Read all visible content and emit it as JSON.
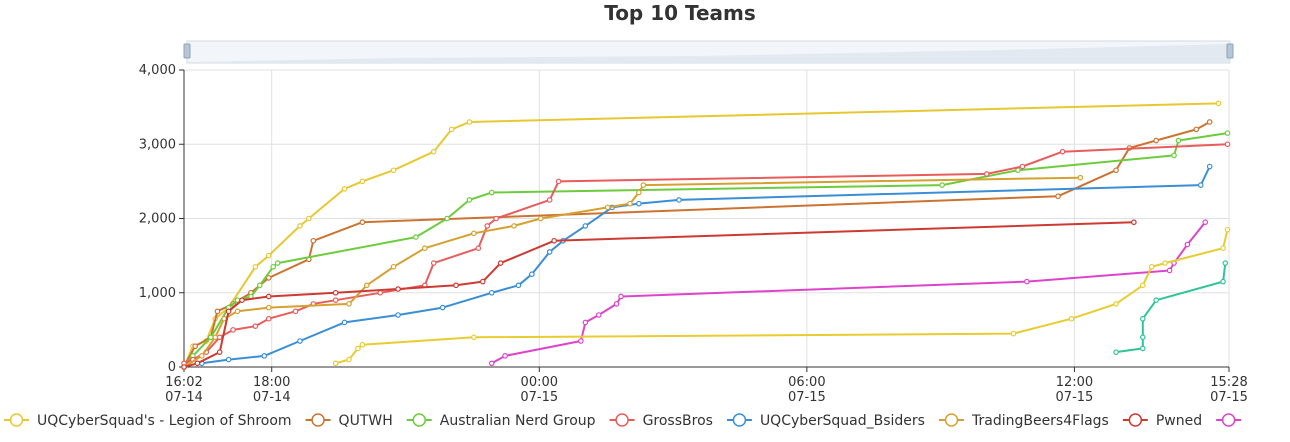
{
  "chart_data": {
    "type": "line",
    "title": "Top 10 Teams",
    "xlabel": "",
    "ylabel": "",
    "ylim": [
      0,
      4000
    ],
    "yticks": [
      0,
      1000,
      2000,
      3000,
      4000
    ],
    "ytick_labels": [
      "0",
      "1,000",
      "2,000",
      "3,000",
      "4,000"
    ],
    "x_unit": "hours since 16:02 07-14",
    "xlim": [
      0,
      23.433
    ],
    "xticks": [
      {
        "x": 0,
        "time": "16:02",
        "date": "07-14"
      },
      {
        "x": 1.967,
        "time": "18:00",
        "date": "07-14"
      },
      {
        "x": 7.967,
        "time": "00:00",
        "date": "07-15"
      },
      {
        "x": 13.967,
        "time": "06:00",
        "date": "07-15"
      },
      {
        "x": 19.967,
        "time": "12:00",
        "date": "07-15"
      },
      {
        "x": 23.433,
        "time": "15:28",
        "date": "07-15"
      }
    ],
    "grid": true,
    "legend_position": "bottom",
    "series": [
      {
        "name": "UQCyberSquad's - Legion of Shroom",
        "color": "#e8c832",
        "points": [
          [
            0,
            0
          ],
          [
            0.2,
            280
          ],
          [
            0.5,
            350
          ],
          [
            0.7,
            650
          ],
          [
            1.0,
            800
          ],
          [
            1.6,
            1350
          ],
          [
            1.9,
            1500
          ],
          [
            2.6,
            1900
          ],
          [
            2.8,
            2000
          ],
          [
            3.6,
            2400
          ],
          [
            4.0,
            2500
          ],
          [
            4.7,
            2650
          ],
          [
            5.6,
            2900
          ],
          [
            6.0,
            3200
          ],
          [
            6.4,
            3300
          ],
          [
            23.2,
            3550
          ]
        ]
      },
      {
        "name": "QUTWH",
        "color": "#cc7332",
        "points": [
          [
            0,
            0
          ],
          [
            0.25,
            280
          ],
          [
            0.6,
            400
          ],
          [
            0.75,
            750
          ],
          [
            1.1,
            850
          ],
          [
            1.5,
            1000
          ],
          [
            1.9,
            1200
          ],
          [
            2.8,
            1450
          ],
          [
            2.9,
            1700
          ],
          [
            4.0,
            1950
          ],
          [
            19.6,
            2300
          ],
          [
            20.9,
            2650
          ],
          [
            21.2,
            2950
          ],
          [
            21.8,
            3050
          ],
          [
            22.7,
            3200
          ],
          [
            23.0,
            3300
          ]
        ]
      },
      {
        "name": "Australian Nerd Group",
        "color": "#6ccc3c",
        "points": [
          [
            0,
            0
          ],
          [
            0.2,
            150
          ],
          [
            0.6,
            400
          ],
          [
            1.0,
            800
          ],
          [
            1.2,
            900
          ],
          [
            1.5,
            950
          ],
          [
            1.7,
            1100
          ],
          [
            2.0,
            1350
          ],
          [
            2.1,
            1400
          ],
          [
            5.2,
            1750
          ],
          [
            5.9,
            2000
          ],
          [
            6.4,
            2250
          ],
          [
            6.9,
            2350
          ],
          [
            17.0,
            2450
          ],
          [
            18.7,
            2650
          ],
          [
            22.2,
            2850
          ],
          [
            22.3,
            3050
          ],
          [
            23.4,
            3150
          ]
        ]
      },
      {
        "name": "GrossBros",
        "color": "#e85c5c",
        "points": [
          [
            0,
            50
          ],
          [
            0.2,
            100
          ],
          [
            0.5,
            200
          ],
          [
            0.8,
            400
          ],
          [
            1.1,
            500
          ],
          [
            1.6,
            550
          ],
          [
            1.9,
            650
          ],
          [
            2.5,
            750
          ],
          [
            2.9,
            850
          ],
          [
            3.4,
            900
          ],
          [
            4.4,
            1000
          ],
          [
            5.4,
            1100
          ],
          [
            5.6,
            1400
          ],
          [
            6.6,
            1600
          ],
          [
            6.8,
            1900
          ],
          [
            7.0,
            2000
          ],
          [
            8.2,
            2250
          ],
          [
            8.4,
            2500
          ],
          [
            18.0,
            2600
          ],
          [
            18.8,
            2700
          ],
          [
            19.7,
            2900
          ],
          [
            23.4,
            3000
          ]
        ]
      },
      {
        "name": "UQCyberSquad_Bsiders",
        "color": "#3a8ed6",
        "points": [
          [
            0.4,
            50
          ],
          [
            1.0,
            100
          ],
          [
            1.8,
            150
          ],
          [
            2.6,
            350
          ],
          [
            3.6,
            600
          ],
          [
            4.8,
            700
          ],
          [
            5.8,
            800
          ],
          [
            6.9,
            1000
          ],
          [
            7.5,
            1100
          ],
          [
            7.8,
            1250
          ],
          [
            8.2,
            1550
          ],
          [
            8.5,
            1700
          ],
          [
            9.0,
            1900
          ],
          [
            9.6,
            2150
          ],
          [
            10.2,
            2200
          ],
          [
            11.1,
            2250
          ],
          [
            22.8,
            2450
          ],
          [
            23.0,
            2700
          ]
        ]
      },
      {
        "name": "TradingBeers4Flags",
        "color": "#d6a030",
        "points": [
          [
            0,
            0
          ],
          [
            0.4,
            150
          ],
          [
            0.7,
            400
          ],
          [
            0.9,
            650
          ],
          [
            1.2,
            750
          ],
          [
            1.9,
            800
          ],
          [
            3.7,
            850
          ],
          [
            4.1,
            1100
          ],
          [
            4.7,
            1350
          ],
          [
            5.4,
            1600
          ],
          [
            6.5,
            1800
          ],
          [
            7.4,
            1900
          ],
          [
            8.0,
            2000
          ],
          [
            9.5,
            2150
          ],
          [
            10.0,
            2200
          ],
          [
            10.2,
            2350
          ],
          [
            10.3,
            2450
          ],
          [
            20.1,
            2550
          ]
        ]
      },
      {
        "name": "Pwned",
        "color": "#cc3a32",
        "points": [
          [
            0,
            0
          ],
          [
            0.3,
            50
          ],
          [
            0.8,
            200
          ],
          [
            1.0,
            750
          ],
          [
            1.3,
            900
          ],
          [
            1.9,
            950
          ],
          [
            3.4,
            1000
          ],
          [
            4.8,
            1050
          ],
          [
            6.1,
            1100
          ],
          [
            6.7,
            1150
          ],
          [
            7.1,
            1400
          ],
          [
            8.3,
            1700
          ],
          [
            21.3,
            1950
          ]
        ]
      },
      {
        "name": "",
        "color": "#dd44cc",
        "points": [
          [
            6.9,
            50
          ],
          [
            7.2,
            150
          ],
          [
            8.9,
            350
          ],
          [
            9.0,
            600
          ],
          [
            9.3,
            700
          ],
          [
            9.7,
            850
          ],
          [
            9.8,
            950
          ],
          [
            18.9,
            1150
          ],
          [
            22.1,
            1300
          ],
          [
            22.2,
            1400
          ],
          [
            22.5,
            1650
          ],
          [
            22.9,
            1950
          ]
        ]
      },
      {
        "name": "",
        "color": "#e8cc30",
        "points": [
          [
            3.4,
            50
          ],
          [
            3.7,
            100
          ],
          [
            3.9,
            250
          ],
          [
            4.0,
            300
          ],
          [
            6.5,
            400
          ],
          [
            18.6,
            450
          ],
          [
            19.9,
            650
          ],
          [
            20.9,
            850
          ],
          [
            21.5,
            1100
          ],
          [
            21.7,
            1350
          ],
          [
            22.0,
            1400
          ],
          [
            23.3,
            1600
          ],
          [
            23.4,
            1850
          ]
        ]
      },
      {
        "name": "",
        "color": "#2ec49a",
        "points": [
          [
            20.9,
            200
          ],
          [
            21.5,
            250
          ],
          [
            21.5,
            400
          ],
          [
            21.5,
            650
          ],
          [
            21.8,
            900
          ],
          [
            23.3,
            1150
          ],
          [
            23.35,
            1400
          ]
        ]
      }
    ]
  }
}
